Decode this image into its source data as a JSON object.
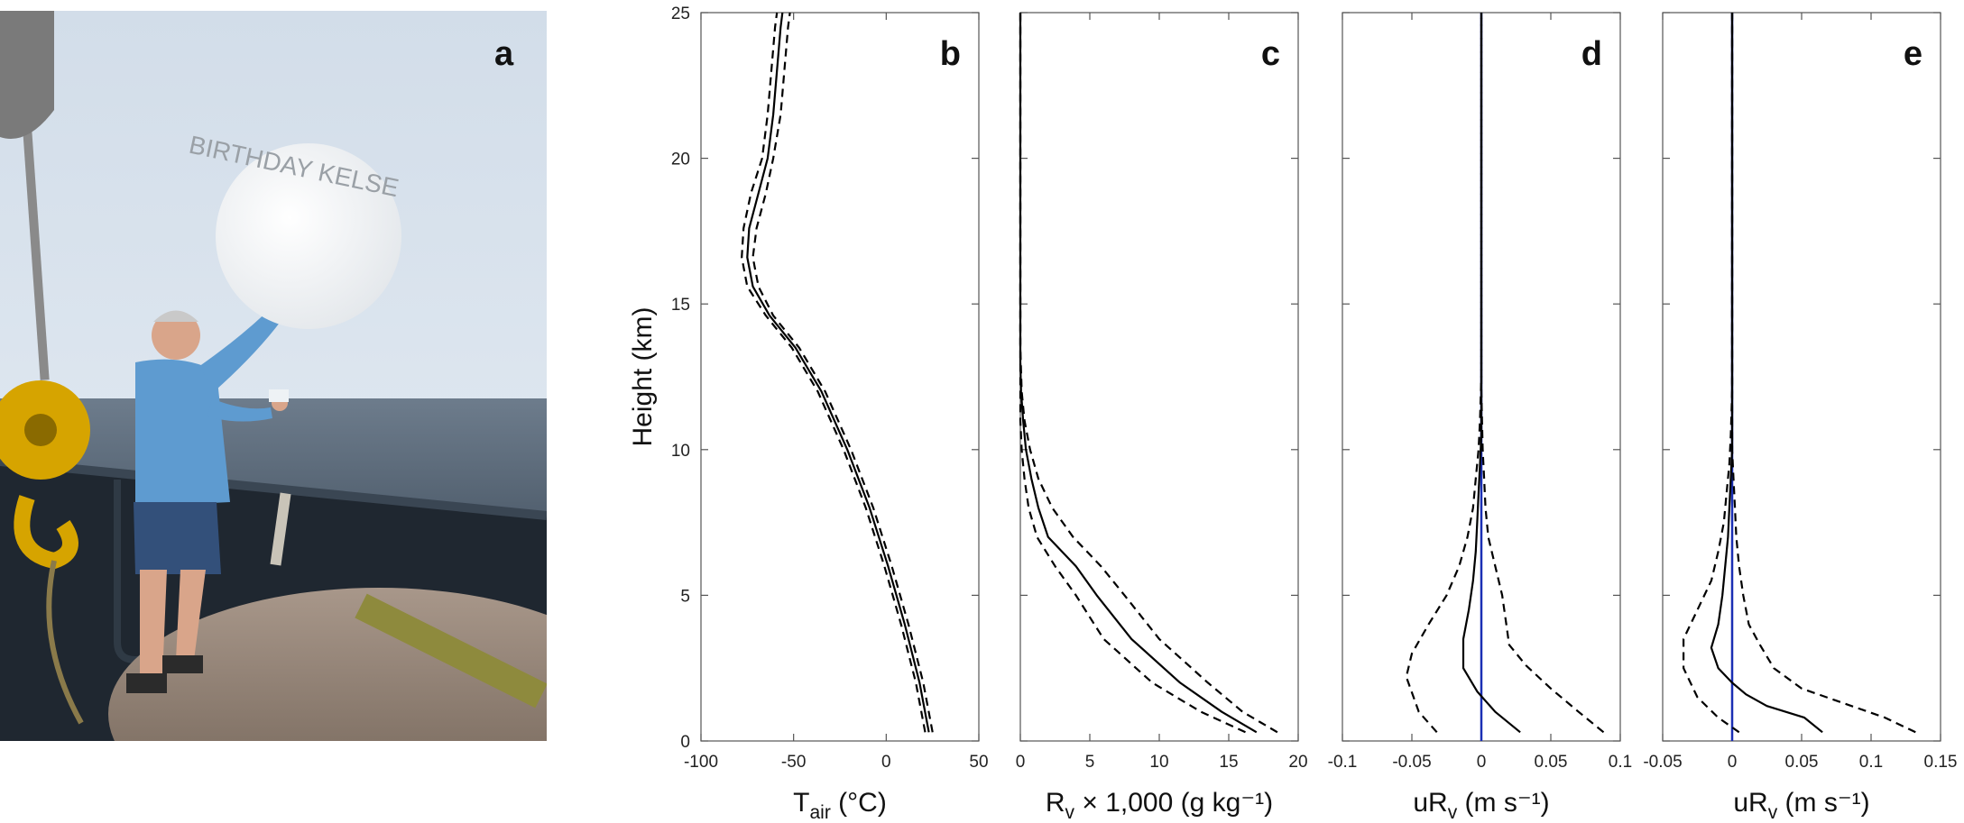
{
  "photo": {
    "letter": "a",
    "balloon_text": "BIRTHDAY KELSE"
  },
  "chart_data": [
    {
      "type": "line",
      "panel": "b",
      "ylabel": "Height (km)",
      "xlabel_main": "T",
      "xlabel_sub": "air",
      "xlabel_rest": " (°C)",
      "xlim": [
        -100,
        50
      ],
      "ylim": [
        0,
        25
      ],
      "xticks": [
        "-100",
        "-50",
        "0",
        "50"
      ],
      "yticks": [
        "0",
        "5",
        "10",
        "15",
        "20",
        "25"
      ],
      "series": [
        {
          "style": "solid",
          "color": "#000000",
          "points": [
            [
              23,
              0.3
            ],
            [
              18,
              2
            ],
            [
              10,
              4
            ],
            [
              1,
              6
            ],
            [
              -9,
              8
            ],
            [
              -21,
              10
            ],
            [
              -35,
              12
            ],
            [
              -49,
              13.5
            ],
            [
              -63,
              14.6
            ],
            [
              -72,
              15.6
            ],
            [
              -75,
              16.6
            ],
            [
              -74,
              17.6
            ],
            [
              -69,
              18.8
            ],
            [
              -64,
              20
            ],
            [
              -61,
              21.5
            ],
            [
              -59,
              23
            ],
            [
              -57,
              24.5
            ],
            [
              -56,
              25
            ]
          ]
        },
        {
          "style": "dashed",
          "color": "#000000",
          "points": [
            [
              25,
              0.3
            ],
            [
              20,
              2
            ],
            [
              12,
              4
            ],
            [
              3,
              6
            ],
            [
              -7,
              8
            ],
            [
              -19,
              10
            ],
            [
              -33,
              12
            ],
            [
              -47,
              13.5
            ],
            [
              -61,
              14.6
            ],
            [
              -69,
              15.6
            ],
            [
              -72,
              16.6
            ],
            [
              -70,
              17.6
            ],
            [
              -65,
              18.8
            ],
            [
              -61,
              20
            ],
            [
              -57,
              21.5
            ],
            [
              -55,
              23
            ],
            [
              -53,
              24.5
            ],
            [
              -52,
              25
            ]
          ]
        },
        {
          "style": "dashed",
          "color": "#000000",
          "points": [
            [
              21,
              0.3
            ],
            [
              16,
              2
            ],
            [
              8,
              4
            ],
            [
              -1,
              6
            ],
            [
              -11,
              8
            ],
            [
              -23,
              10
            ],
            [
              -37,
              12
            ],
            [
              -51,
              13.5
            ],
            [
              -65,
              14.6
            ],
            [
              -75,
              15.6
            ],
            [
              -78,
              16.6
            ],
            [
              -77,
              17.6
            ],
            [
              -73,
              18.8
            ],
            [
              -67,
              20
            ],
            [
              -64,
              21.5
            ],
            [
              -62,
              23
            ],
            [
              -60,
              24.5
            ],
            [
              -59,
              25
            ]
          ]
        }
      ]
    },
    {
      "type": "line",
      "panel": "c",
      "xlabel_main": "R",
      "xlabel_sub": "v",
      "xlabel_rest": " × 1,000 (g kg⁻¹)",
      "xlim": [
        0,
        20
      ],
      "ylim": [
        0,
        25
      ],
      "xticks": [
        "0",
        "5",
        "10",
        "15",
        "20"
      ],
      "yticks": [],
      "series": [
        {
          "style": "solid",
          "color": "#000000",
          "points": [
            [
              17,
              0.3
            ],
            [
              14.5,
              1
            ],
            [
              11.5,
              2
            ],
            [
              8,
              3.5
            ],
            [
              5.5,
              5
            ],
            [
              4,
              6
            ],
            [
              2,
              7
            ],
            [
              1.3,
              8
            ],
            [
              0.8,
              9
            ],
            [
              0.4,
              10
            ],
            [
              0.2,
              11
            ],
            [
              0.05,
              12
            ],
            [
              0,
              13
            ],
            [
              0,
              25
            ]
          ]
        },
        {
          "style": "dashed",
          "color": "#000000",
          "points": [
            [
              18.5,
              0.3
            ],
            [
              16,
              1
            ],
            [
              13.5,
              2
            ],
            [
              10,
              3.5
            ],
            [
              7.5,
              5
            ],
            [
              5.8,
              6
            ],
            [
              3.8,
              7
            ],
            [
              2.3,
              8
            ],
            [
              1.3,
              9
            ],
            [
              0.7,
              10
            ],
            [
              0.3,
              11
            ],
            [
              0.1,
              12
            ],
            [
              0,
              13.5
            ],
            [
              0,
              25
            ]
          ]
        },
        {
          "style": "dashed",
          "color": "#000000",
          "points": [
            [
              16.2,
              0.3
            ],
            [
              13,
              1
            ],
            [
              9.5,
              2
            ],
            [
              6,
              3.5
            ],
            [
              4,
              5
            ],
            [
              2.5,
              6
            ],
            [
              1.2,
              7
            ],
            [
              0.6,
              8
            ],
            [
              0.3,
              9
            ],
            [
              0.1,
              10
            ],
            [
              0,
              11
            ],
            [
              0,
              12
            ],
            [
              0,
              13
            ],
            [
              0,
              25
            ]
          ]
        }
      ]
    },
    {
      "type": "line",
      "panel": "d",
      "xlabel_main": "uR",
      "xlabel_sub": "v",
      "xlabel_rest": " (m s⁻¹)",
      "xlim": [
        -0.1,
        0.1
      ],
      "ylim": [
        0,
        25
      ],
      "xticks": [
        "-0.1",
        "-0.05",
        "0",
        "0.05",
        "0.1"
      ],
      "yticks": [],
      "zero_line": {
        "x": 0,
        "color": "#1a2fb4"
      },
      "series": [
        {
          "style": "solid",
          "color": "#000000",
          "points": [
            [
              0.028,
              0.3
            ],
            [
              0.01,
              1
            ],
            [
              -0.003,
              1.7
            ],
            [
              -0.013,
              2.5
            ],
            [
              -0.013,
              3.5
            ],
            [
              -0.009,
              4.5
            ],
            [
              -0.006,
              5.5
            ],
            [
              -0.004,
              6.5
            ],
            [
              -0.003,
              7.5
            ],
            [
              -0.002,
              8.5
            ],
            [
              -0.001,
              9.5
            ],
            [
              0,
              10.5
            ],
            [
              0,
              12
            ],
            [
              0,
              25
            ]
          ]
        },
        {
          "style": "dashed",
          "color": "#000000",
          "points": [
            [
              0.088,
              0.3
            ],
            [
              0.07,
              1
            ],
            [
              0.05,
              1.8
            ],
            [
              0.032,
              2.6
            ],
            [
              0.02,
              3.3
            ],
            [
              0.018,
              4
            ],
            [
              0.015,
              5
            ],
            [
              0.01,
              6
            ],
            [
              0.005,
              7
            ],
            [
              0.003,
              8
            ],
            [
              0.002,
              9
            ],
            [
              0.001,
              10
            ],
            [
              0,
              12
            ],
            [
              0,
              25
            ]
          ]
        },
        {
          "style": "dashed",
          "color": "#000000",
          "points": [
            [
              -0.032,
              0.3
            ],
            [
              -0.045,
              1
            ],
            [
              -0.054,
              2.2
            ],
            [
              -0.05,
              3
            ],
            [
              -0.038,
              4
            ],
            [
              -0.025,
              5
            ],
            [
              -0.016,
              6
            ],
            [
              -0.01,
              7
            ],
            [
              -0.006,
              8
            ],
            [
              -0.004,
              9
            ],
            [
              -0.002,
              10
            ],
            [
              -0.001,
              11
            ],
            [
              0,
              12.5
            ],
            [
              0,
              25
            ]
          ]
        }
      ]
    },
    {
      "type": "line",
      "panel": "e",
      "xlabel_main": "uR",
      "xlabel_sub": "v",
      "xlabel_rest": " (m s⁻¹)",
      "xlim": [
        -0.05,
        0.15
      ],
      "ylim": [
        0,
        25
      ],
      "xticks": [
        "-0.05",
        "0",
        "0.05",
        "0.1",
        "0.15"
      ],
      "yticks": [],
      "zero_line": {
        "x": 0,
        "color": "#1a2fb4"
      },
      "series": [
        {
          "style": "solid",
          "color": "#000000",
          "points": [
            [
              0.065,
              0.3
            ],
            [
              0.052,
              0.8
            ],
            [
              0.025,
              1.2
            ],
            [
              0.01,
              1.6
            ],
            [
              0,
              2
            ],
            [
              -0.01,
              2.5
            ],
            [
              -0.015,
              3.2
            ],
            [
              -0.01,
              4
            ],
            [
              -0.007,
              5
            ],
            [
              -0.005,
              6
            ],
            [
              -0.003,
              7
            ],
            [
              -0.002,
              8
            ],
            [
              -0.001,
              9
            ],
            [
              0,
              10
            ],
            [
              0,
              11.5
            ],
            [
              0,
              25
            ]
          ]
        },
        {
          "style": "dashed",
          "color": "#000000",
          "points": [
            [
              0.132,
              0.3
            ],
            [
              0.11,
              0.8
            ],
            [
              0.08,
              1.3
            ],
            [
              0.05,
              1.8
            ],
            [
              0.03,
              2.5
            ],
            [
              0.02,
              3.3
            ],
            [
              0.012,
              4
            ],
            [
              0.008,
              5
            ],
            [
              0.005,
              6
            ],
            [
              0.003,
              7
            ],
            [
              0.002,
              8
            ],
            [
              0.001,
              9
            ],
            [
              0,
              10
            ],
            [
              0,
              12.5
            ],
            [
              0,
              25
            ]
          ]
        },
        {
          "style": "dashed",
          "color": "#000000",
          "points": [
            [
              0.005,
              0.3
            ],
            [
              -0.01,
              0.8
            ],
            [
              -0.025,
              1.5
            ],
            [
              -0.035,
              2.5
            ],
            [
              -0.035,
              3.5
            ],
            [
              -0.025,
              4.5
            ],
            [
              -0.015,
              5.5
            ],
            [
              -0.01,
              6.5
            ],
            [
              -0.006,
              7.5
            ],
            [
              -0.004,
              8.5
            ],
            [
              -0.002,
              9.5
            ],
            [
              -0.001,
              10.5
            ],
            [
              0,
              12
            ],
            [
              0,
              25
            ]
          ]
        }
      ]
    }
  ]
}
